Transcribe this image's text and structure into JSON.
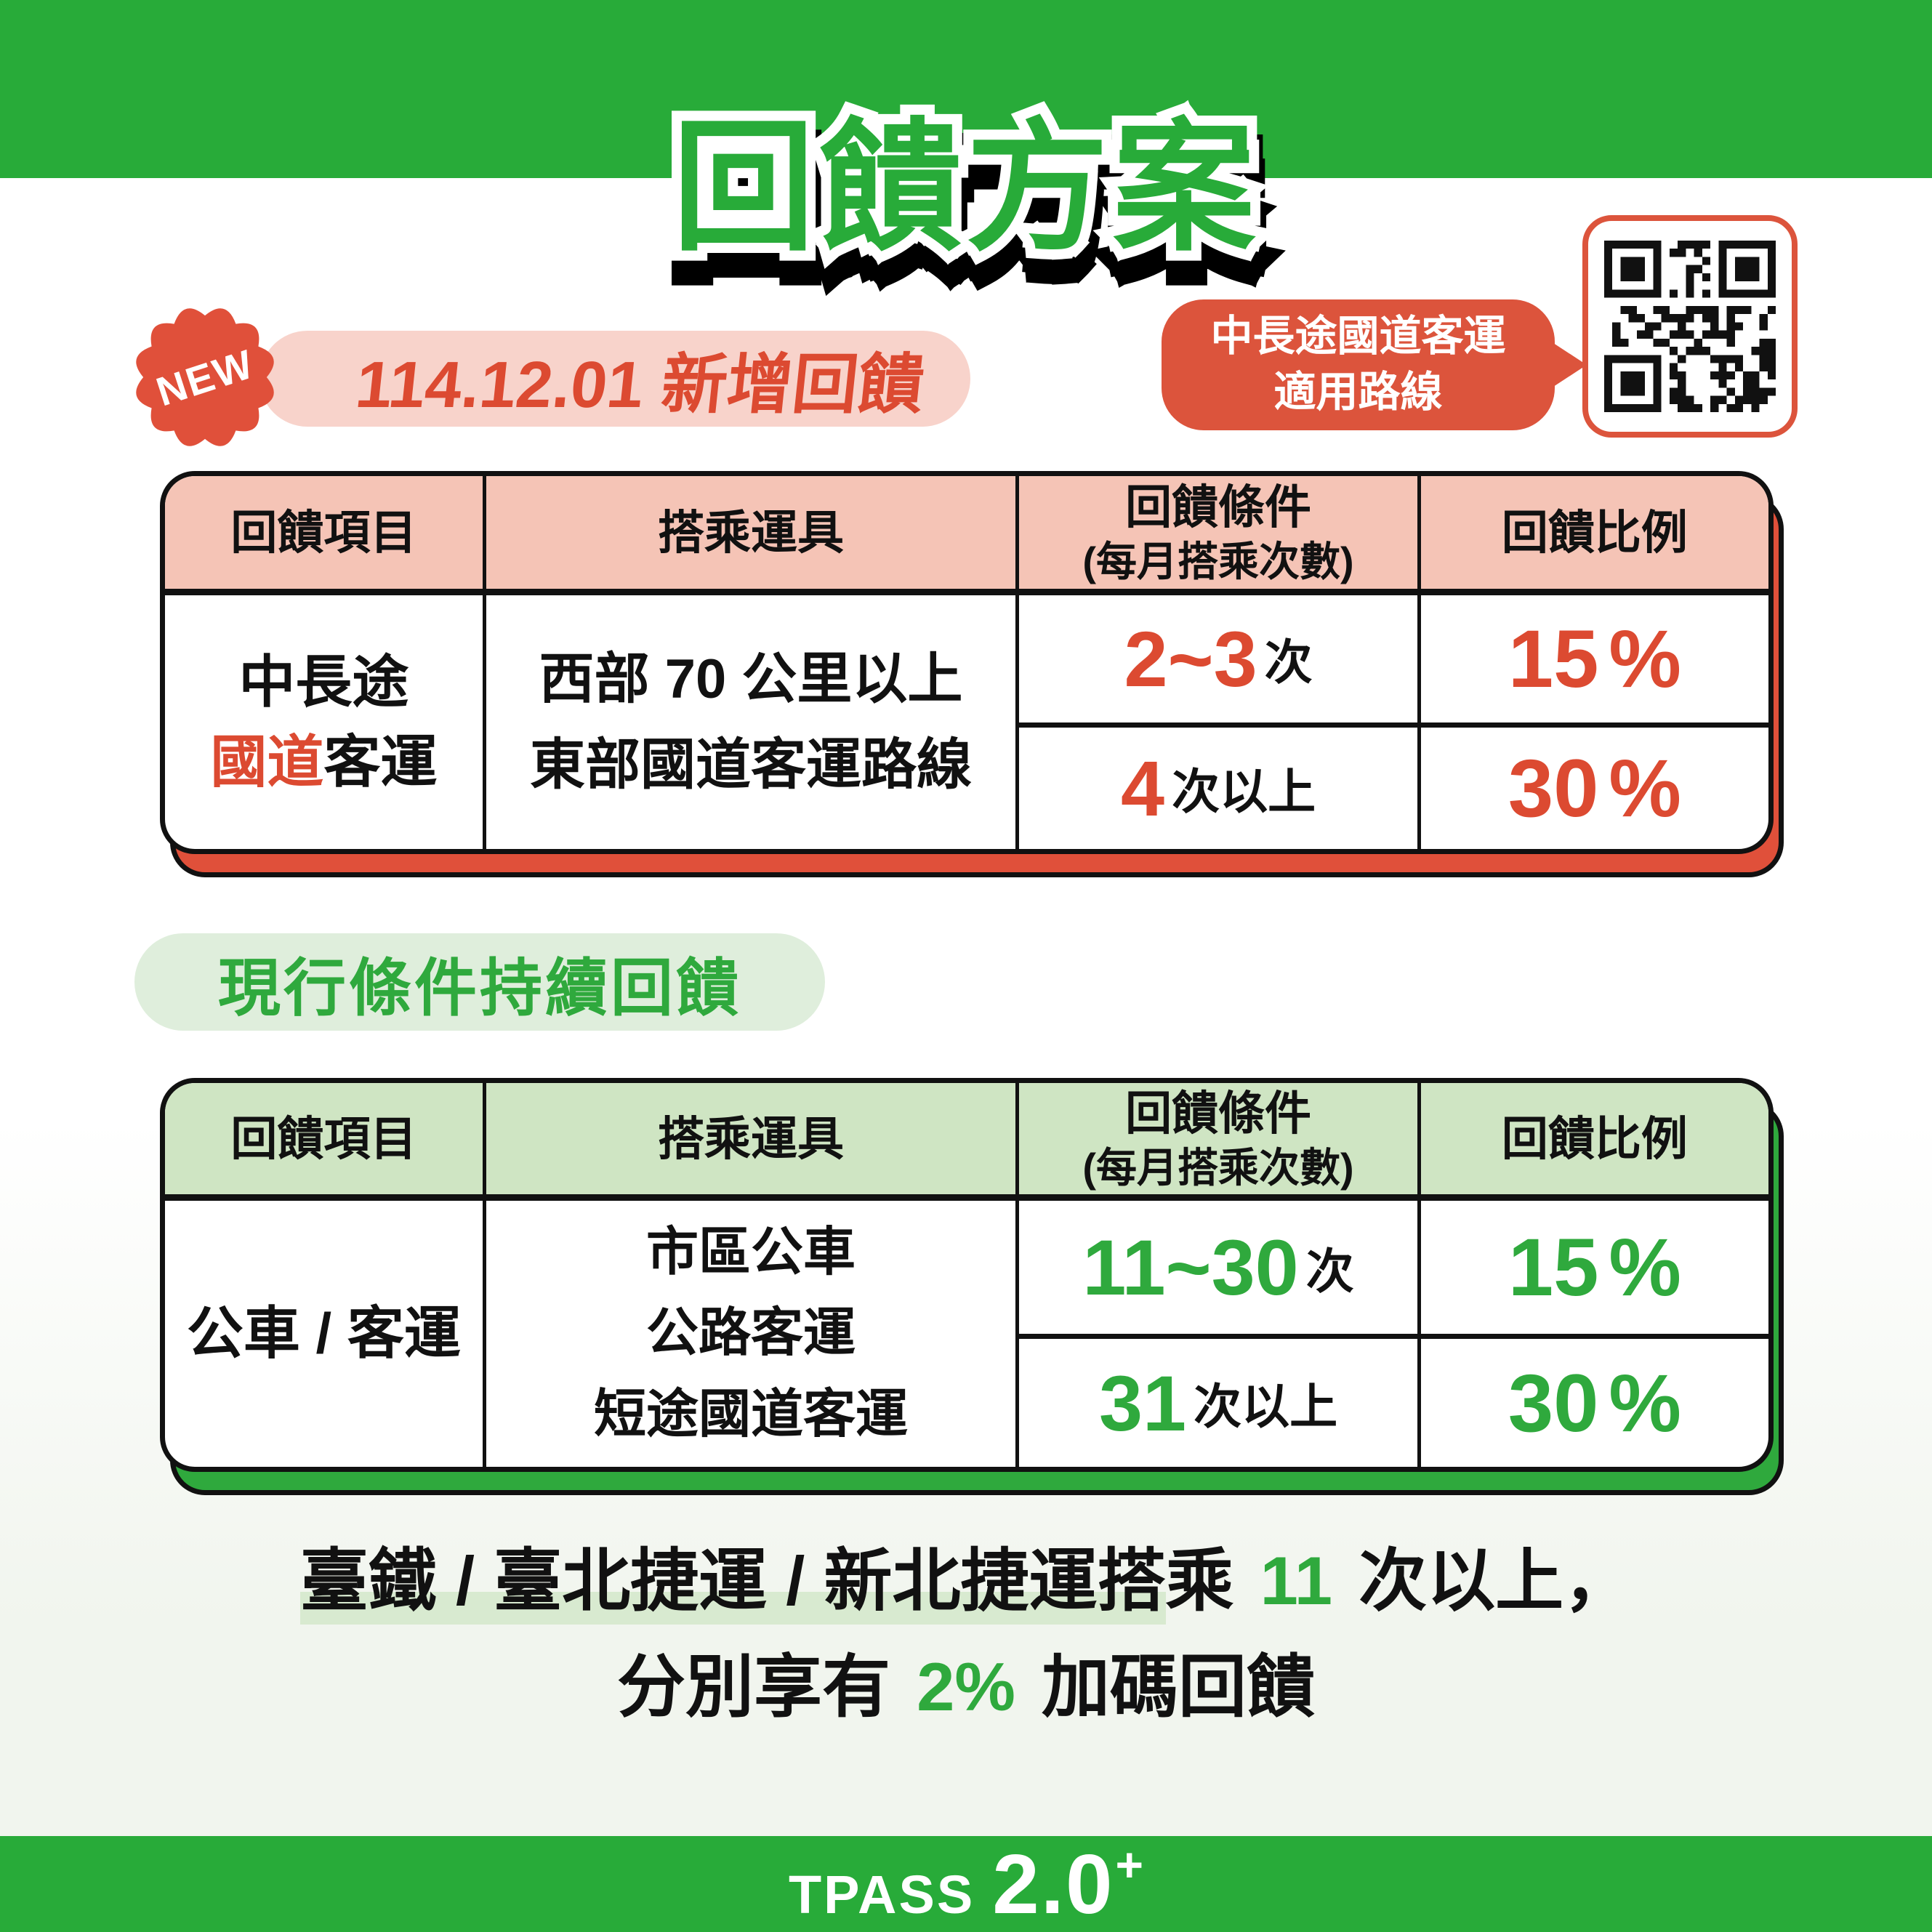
{
  "title": "回饋方案",
  "new_section": {
    "badge_label": "NEW",
    "date_banner": "114.12.01 新增回饋",
    "qr_caption_line1": "中長途國道客運",
    "qr_caption_line2": "適用路線"
  },
  "tables": {
    "headers": {
      "item": "回饋項目",
      "vehicle": "搭乘運具",
      "condition_line1": "回饋條件",
      "condition_line2": "(每月搭乘次數)",
      "ratio": "回饋比例"
    },
    "new_rebate": {
      "item_line1": "中長途",
      "item_line2_red": "國道",
      "item_line2_rest": "客運",
      "vehicle_line1": "西部 70 公里以上",
      "vehicle_line2": "東部國道客運路線",
      "rows": [
        {
          "count": "2~3",
          "count_suffix": "次",
          "percent": "15",
          "unit": "%"
        },
        {
          "count": "4",
          "count_suffix": "次以上",
          "percent": "30",
          "unit": "%"
        }
      ]
    },
    "current_rebate": {
      "section_label": "現行條件持續回饋",
      "item": "公車 / 客運",
      "vehicle_line1": "市區公車",
      "vehicle_line2": "公路客運",
      "vehicle_line3": "短途國道客運",
      "rows": [
        {
          "count": "11~30",
          "count_suffix": "次",
          "percent": "15",
          "unit": "%"
        },
        {
          "count": "31",
          "count_suffix": "次以上",
          "percent": "30",
          "unit": "%"
        }
      ]
    }
  },
  "footnote": {
    "line1_highlighted": "臺鐵 / 臺北捷運 / 新北捷運搭",
    "line1_plain": "乘 ",
    "line1_number": "11",
    "line1_rest": " 次以上，",
    "line2_pre": "分別享有 ",
    "line2_number": "2%",
    "line2_rest": " 加碼回饋"
  },
  "footer": {
    "brand": "TPASS",
    "version": "2.0",
    "plus": "+"
  },
  "colors": {
    "green": "#28AB39",
    "value_green": "#2FA93D",
    "red": "#DC4A31",
    "badge_red": "#E0503A",
    "bubble_red": "#DC543C",
    "pink_header": "#F5C4B6",
    "pink_pill": "#F8D3CB",
    "green_header": "#CFE5C3",
    "green_pill": "#DFEEDC",
    "highlight_green": "#D8EAD0",
    "ink": "#111111",
    "bg_bottom": "#F1F5EE"
  }
}
